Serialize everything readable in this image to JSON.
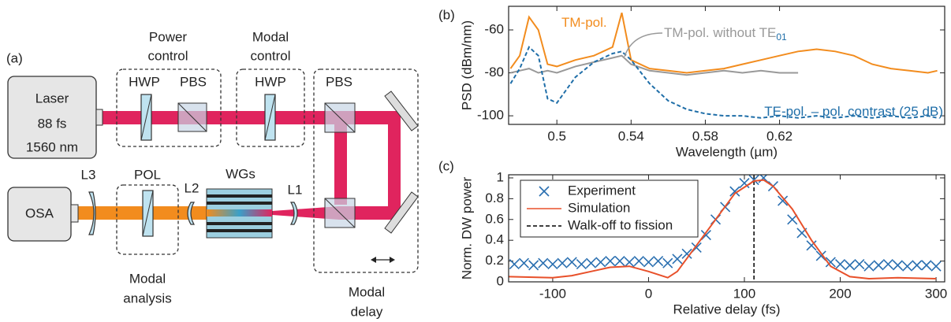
{
  "diagram": {
    "panel_label": "(a)",
    "laser": [
      "Laser",
      "88 fs",
      "1560 nm"
    ],
    "power_control": [
      "Power",
      "control"
    ],
    "modal_control": [
      "Modal",
      "control"
    ],
    "hwp_1": "HWP",
    "pbs_1": "PBS",
    "hwp_2": "HWP",
    "pbs_2": "PBS",
    "osa": "OSA",
    "l3": "L3",
    "pol": "POL",
    "l2": "L2",
    "wgs": "WGs",
    "l1": "L1",
    "modal_analysis": [
      "Modal",
      "analysis"
    ],
    "modal_delay": [
      "Modal",
      "delay"
    ]
  },
  "chart_data": [
    {
      "type": "line",
      "panel_label": "(b)",
      "xlabel": "Wavelength (µm)",
      "ylabel": "PSD (dBm/nm)",
      "x": [
        0.475,
        0.48,
        0.485,
        0.49,
        0.495,
        0.5,
        0.51,
        0.52,
        0.53,
        0.535,
        0.54,
        0.55,
        0.56,
        0.57,
        0.58,
        0.59,
        0.6,
        0.61,
        0.62,
        0.63,
        0.64,
        0.65,
        0.66,
        0.67,
        0.68,
        0.69,
        0.7,
        0.705
      ],
      "xlim": [
        0.474,
        0.709
      ],
      "xticks": [
        0.5,
        0.54,
        0.58,
        0.62
      ],
      "ylim": [
        -104,
        -49
      ],
      "yticks": [
        -100,
        -80,
        -60
      ],
      "series": [
        {
          "name": "TM-pol.",
          "color": "#f28c1e",
          "style": "solid",
          "values": [
            -78,
            -72,
            -54,
            -60,
            -76,
            -77,
            -74,
            -72,
            -68,
            -52,
            -74,
            -78,
            -79,
            -80,
            -79,
            -78,
            -76,
            -74,
            -72,
            -70,
            -69,
            -70,
            -72,
            -76,
            -78,
            -79,
            -80,
            -79
          ]
        },
        {
          "name": "TM-pol. without TE",
          "name_subscript": "01",
          "color": "#999999",
          "style": "solid",
          "values": [
            -80,
            -79,
            -78,
            -80,
            -79,
            -80,
            -77,
            -75,
            -73,
            -72,
            -76,
            -79,
            -80,
            -81,
            -80,
            -79,
            -80,
            -79,
            -80,
            -80,
            null,
            null,
            null,
            null,
            null,
            null,
            null,
            null
          ]
        },
        {
          "name": "TE-pol. – pol. contrast (25 dB)",
          "color": "#1f6ea8",
          "style": "dashed",
          "values": [
            -85,
            -78,
            -68,
            -72,
            -92,
            -94,
            -82,
            -75,
            -71,
            -70,
            -74,
            -85,
            -93,
            -97,
            -99,
            -100,
            -100,
            -101,
            -100,
            -101,
            -100,
            -101,
            -100,
            -101,
            -100,
            -101,
            -100,
            -101
          ]
        }
      ]
    },
    {
      "type": "line",
      "panel_label": "(c)",
      "xlabel": "Relative delay (fs)",
      "ylabel": "Norm. DW power",
      "xlim": [
        -146,
        309
      ],
      "xticks": [
        -100,
        0,
        100,
        200,
        300
      ],
      "ylim": [
        0,
        1.03
      ],
      "yticks": [
        0,
        0.2,
        0.4,
        0.6,
        0.8,
        1
      ],
      "legend": "upper left",
      "series": [
        {
          "name": "Experiment",
          "color": "#2a6fb0",
          "marker": "x",
          "x": [
            -140,
            -130,
            -120,
            -110,
            -100,
            -90,
            -80,
            -70,
            -60,
            -50,
            -40,
            -30,
            -20,
            -10,
            0,
            10,
            20,
            30,
            40,
            50,
            60,
            70,
            80,
            90,
            100,
            110,
            120,
            130,
            140,
            150,
            160,
            170,
            180,
            190,
            200,
            210,
            220,
            230,
            240,
            250,
            260,
            270,
            280,
            290,
            300
          ],
          "values": [
            0.17,
            0.18,
            0.16,
            0.18,
            0.17,
            0.18,
            0.19,
            0.17,
            0.18,
            0.19,
            0.2,
            0.2,
            0.19,
            0.2,
            0.19,
            0.2,
            0.18,
            0.22,
            0.27,
            0.33,
            0.45,
            0.6,
            0.72,
            0.87,
            0.95,
            0.98,
            1.0,
            0.92,
            0.78,
            0.6,
            0.47,
            0.35,
            0.25,
            0.19,
            0.17,
            0.16,
            0.17,
            0.15,
            0.16,
            0.17,
            0.16,
            0.15,
            0.16,
            0.16,
            0.15
          ]
        },
        {
          "name": "Simulation",
          "color": "#e8502a",
          "x": [
            -146,
            -100,
            -80,
            -60,
            -40,
            -20,
            0,
            20,
            30,
            50,
            70,
            90,
            110,
            120,
            130,
            150,
            170,
            190,
            210,
            230,
            260,
            300
          ],
          "values": [
            0.05,
            0.04,
            0.06,
            0.1,
            0.14,
            0.15,
            0.1,
            0.04,
            0.1,
            0.35,
            0.6,
            0.85,
            0.97,
            0.98,
            0.92,
            0.7,
            0.4,
            0.15,
            0.05,
            0.03,
            0.04,
            0.03
          ]
        }
      ],
      "vlines": [
        {
          "name": "Walk-off to fission",
          "x": 110,
          "color": "#000000"
        }
      ]
    }
  ]
}
